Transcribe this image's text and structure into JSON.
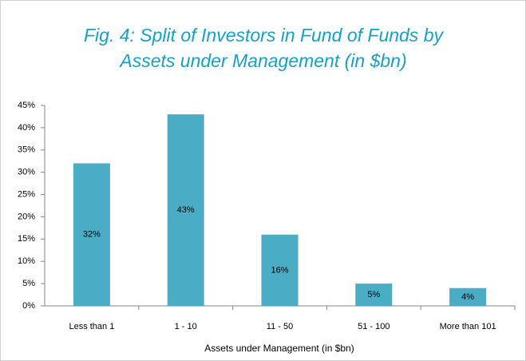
{
  "chart_data": {
    "type": "bar",
    "title_lines": [
      "Fig. 4: Split of Investors in Fund of Funds by",
      "Assets under Management (in $bn)"
    ],
    "x_label": "Assets under Management (in $bn)",
    "categories": [
      "Less than 1",
      "1 - 10",
      "11 - 50",
      "51 - 100",
      "More than 101"
    ],
    "values": [
      32,
      43,
      16,
      5,
      4
    ],
    "value_labels": [
      "32%",
      "43%",
      "16%",
      "5%",
      "4%"
    ],
    "color": "#4bacc6",
    "ylim": [
      0,
      45
    ],
    "yticks": [
      {
        "value": 0,
        "label": "0%"
      },
      {
        "value": 5,
        "label": "5%"
      },
      {
        "value": 10,
        "label": "10%"
      },
      {
        "value": 15,
        "label": "15%"
      },
      {
        "value": 20,
        "label": "20%"
      },
      {
        "value": 25,
        "label": "25%"
      },
      {
        "value": 30,
        "label": "30%"
      },
      {
        "value": 35,
        "label": "35%"
      },
      {
        "value": 40,
        "label": "40%"
      },
      {
        "value": 45,
        "label": "45%"
      }
    ],
    "grid": false
  }
}
